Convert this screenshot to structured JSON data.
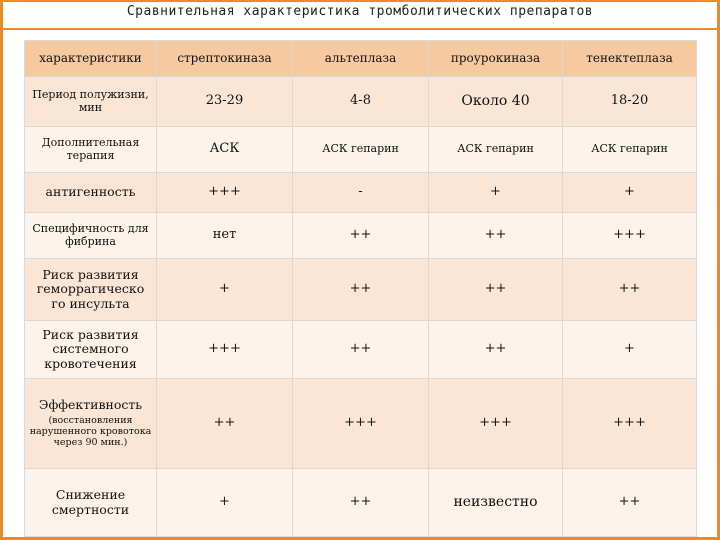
{
  "title": "Сравнительная характеристика тромболитических препаратов",
  "headers": [
    "характеристики",
    "стрептокиназа",
    "альтеплаза",
    "проурокиназа",
    "тенектеплаза"
  ],
  "rows": [
    {
      "label": "Период полужизни, мин",
      "values": [
        "23-29",
        "4-8",
        "Около 40",
        "18-20"
      ]
    },
    {
      "label": "Дополнительная терапия",
      "values": [
        "АСК",
        "АСК гепарин",
        "АСК гепарин",
        "АСК гепарин"
      ]
    },
    {
      "label": "антигенность",
      "values": [
        "+++",
        "-",
        "+",
        "+"
      ]
    },
    {
      "label": "Специфичность для фибрина",
      "values": [
        "нет",
        "++",
        "++",
        "+++"
      ]
    },
    {
      "label": "Риск развития геморрагическо го инсульта",
      "values": [
        "+",
        "++",
        "++",
        "++"
      ]
    },
    {
      "label": "Риск развития системного кровотечения",
      "values": [
        "+++",
        "++",
        "++",
        "+"
      ]
    },
    {
      "label": "Эффективность",
      "sublabel": "(восстановления нарушенного кровотока через 90 мин.)",
      "values": [
        "++",
        "+++",
        "+++",
        "+++"
      ]
    },
    {
      "label": "Снижение смертности",
      "values": [
        "+",
        "++",
        "неизвестно",
        "++"
      ]
    }
  ]
}
